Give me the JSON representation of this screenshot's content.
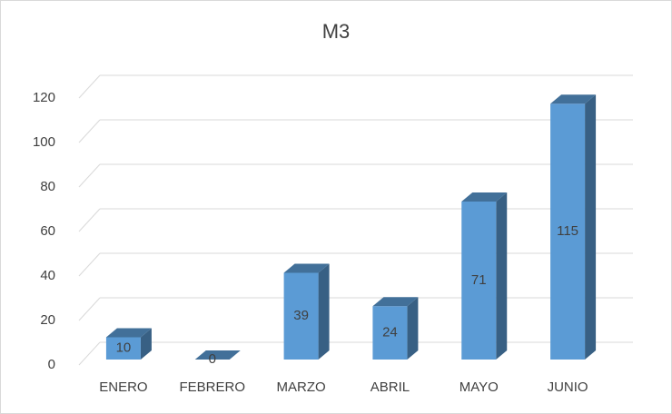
{
  "chart_data": {
    "type": "bar3d",
    "title": "M3",
    "categories": [
      "ENERO",
      "FEBRERO",
      "MARZO",
      "ABRIL",
      "MAYO",
      "JUNIO"
    ],
    "values": [
      10,
      0,
      39,
      24,
      71,
      115
    ],
    "color": "#5b9bd5",
    "ylim": [
      0,
      120
    ],
    "yticks": [
      0,
      20,
      40,
      60,
      80,
      100,
      120
    ],
    "grid": true
  }
}
